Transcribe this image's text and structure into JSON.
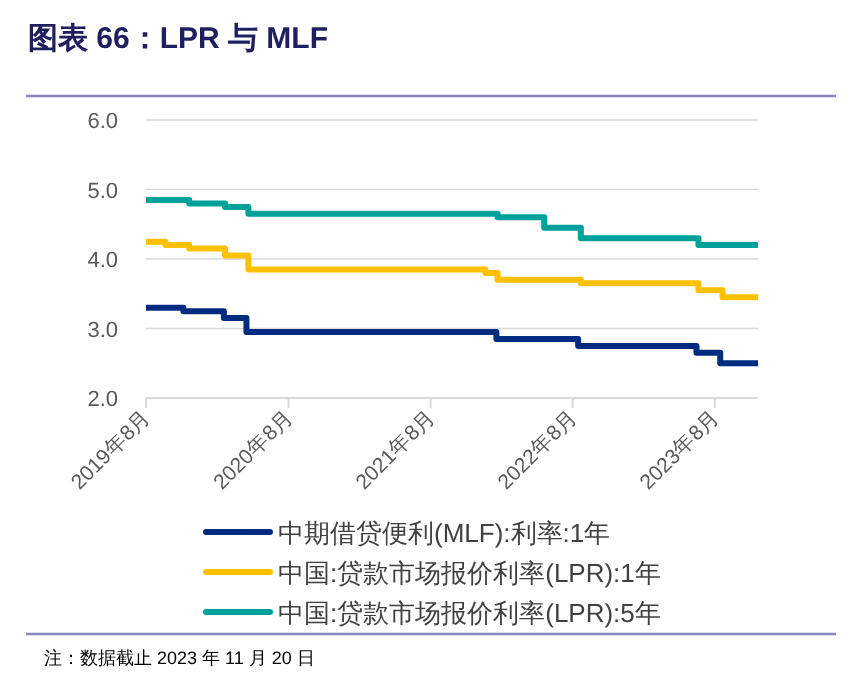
{
  "chart_data": {
    "type": "step",
    "title": "图表 66：LPR 与 MLF",
    "annotations": [
      "注：数据截止 2023 年 11 月 20 日"
    ],
    "xlim": [
      "2019-08",
      "2023-11-20"
    ],
    "xticks": [
      {
        "value": "2019-08",
        "label": "2019年8月"
      },
      {
        "value": "2020-08",
        "label": "2020年8月"
      },
      {
        "value": "2021-08",
        "label": "2021年8月"
      },
      {
        "value": "2022-08",
        "label": "2022年8月"
      },
      {
        "value": "2023-08",
        "label": "2023年8月"
      }
    ],
    "ylim": [
      2,
      6
    ],
    "yticks": [
      {
        "value": 2,
        "label": "2.0"
      },
      {
        "value": 3,
        "label": "3.0"
      },
      {
        "value": 4,
        "label": "4.0"
      },
      {
        "value": 5,
        "label": "5.0"
      },
      {
        "value": 6,
        "label": "6.0"
      }
    ],
    "grid": "y",
    "legend": "bottom",
    "line_style": "solid",
    "series": [
      {
        "name": "中期借贷便利(MLF):利率:1年",
        "color": "#002b7f",
        "x": [
          "2019-08",
          "2019-11-05",
          "2020-02-17",
          "2020-04-15",
          "2022-01-17",
          "2022-08-15",
          "2023-06-15",
          "2023-08-15",
          "2023-11-20"
        ],
        "values": [
          3.3,
          3.25,
          3.15,
          2.95,
          2.85,
          2.75,
          2.65,
          2.5,
          2.5
        ]
      },
      {
        "name": "中国:贷款市场报价利率(LPR):1年",
        "color": "#ffc000",
        "x": [
          "2019-08",
          "2019-09-20",
          "2019-11-20",
          "2020-02-20",
          "2020-04-20",
          "2021-12-20",
          "2022-01-20",
          "2022-08-22",
          "2023-06-20",
          "2023-08-21",
          "2023-11-20"
        ],
        "values": [
          4.25,
          4.2,
          4.15,
          4.05,
          3.85,
          3.8,
          3.7,
          3.65,
          3.55,
          3.45,
          3.45
        ]
      },
      {
        "name": "中国:贷款市场报价利率(LPR):5年",
        "color": "#00a19a",
        "x": [
          "2019-08",
          "2019-11-20",
          "2020-02-20",
          "2020-04-20",
          "2022-01-20",
          "2022-05-20",
          "2022-08-22",
          "2023-06-20",
          "2023-11-20"
        ],
        "values": [
          4.85,
          4.8,
          4.75,
          4.65,
          4.6,
          4.45,
          4.3,
          4.2,
          4.2
        ]
      }
    ]
  }
}
